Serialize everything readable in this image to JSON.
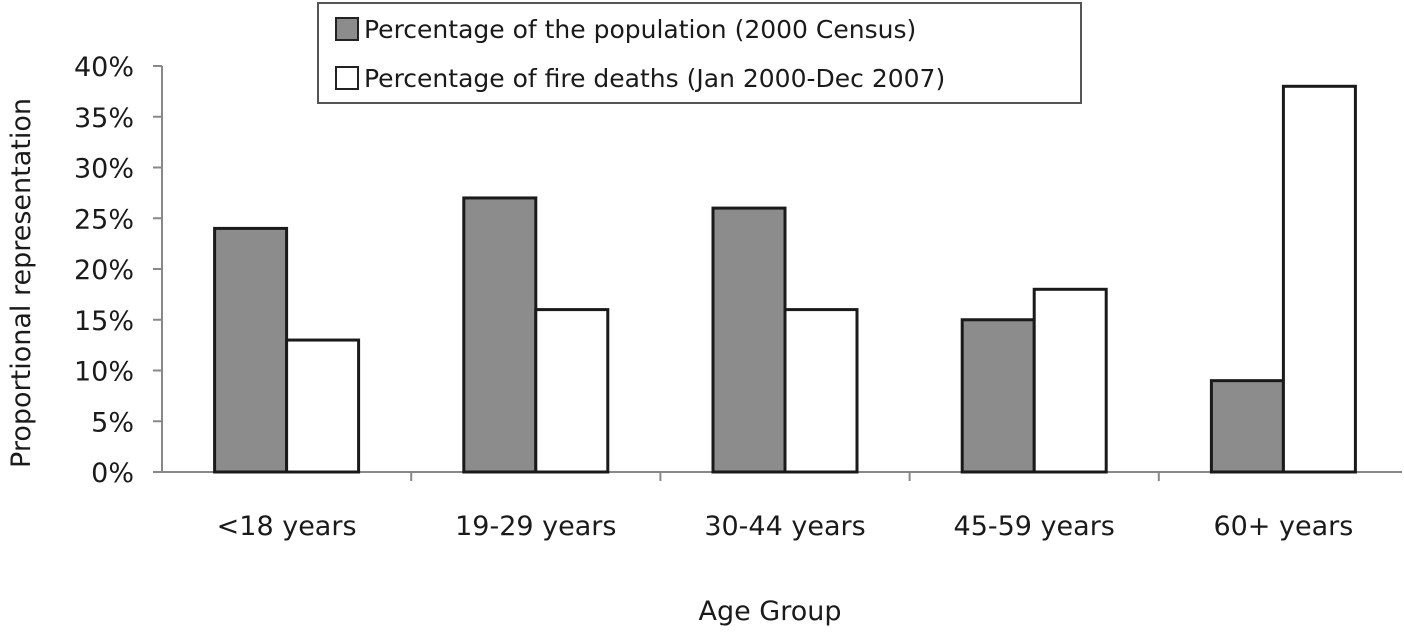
{
  "chart_data": {
    "type": "bar",
    "title": "",
    "xlabel": "Age Group",
    "ylabel": "Proportional representation",
    "ylim": [
      0,
      40
    ],
    "y_ticks": [
      "0%",
      "5%",
      "10%",
      "15%",
      "20%",
      "25%",
      "30%",
      "35%",
      "40%"
    ],
    "categories": [
      "<18 years",
      "19-29 years",
      "30-44 years",
      "45-59 years",
      "60+ years"
    ],
    "series": [
      {
        "name": "Percentage of the population (2000 Census)",
        "color": "#8c8c8c",
        "values": [
          24,
          27,
          26,
          15,
          9
        ]
      },
      {
        "name": "Percentage of fire deaths (Jan 2000-Dec 2007)",
        "color": "#ffffff",
        "values": [
          13,
          16,
          16,
          18,
          38
        ]
      }
    ],
    "grid": false,
    "legend_position": "top-center"
  }
}
